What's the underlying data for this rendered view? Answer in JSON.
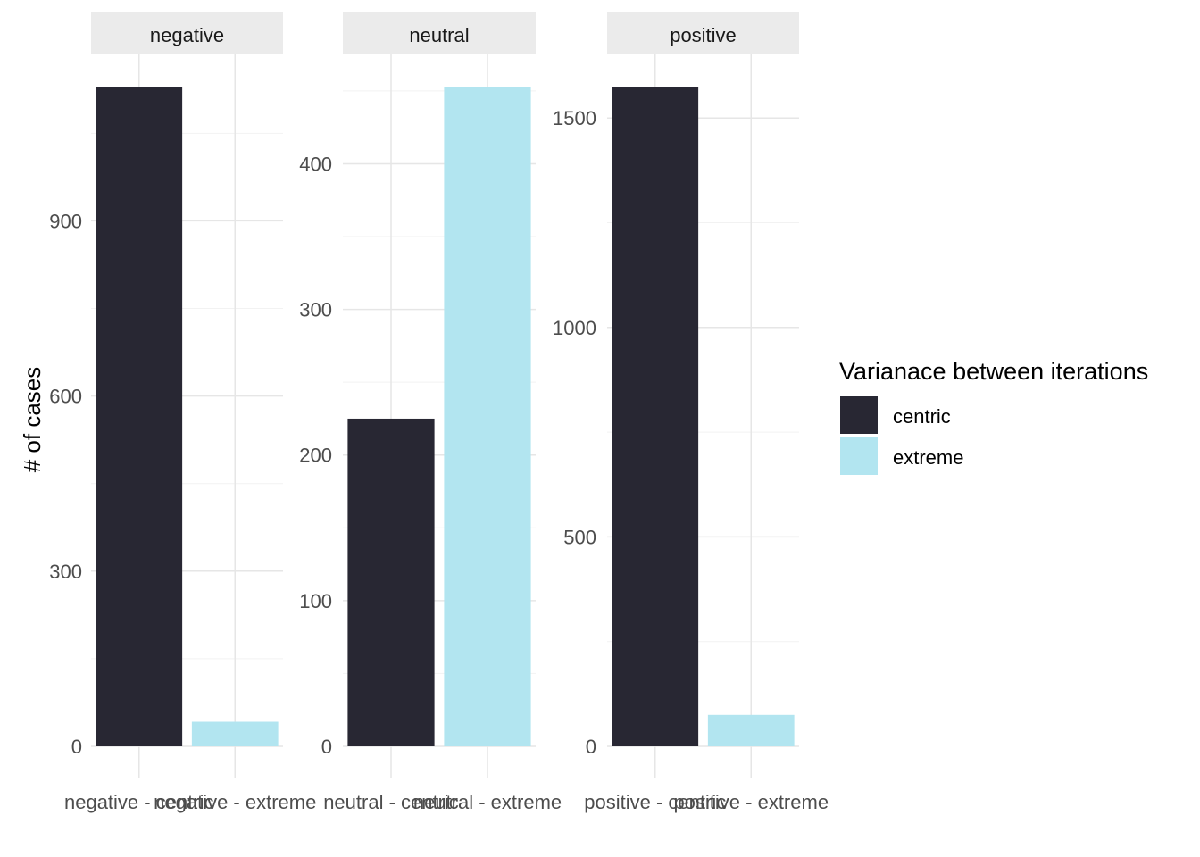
{
  "chart_data": {
    "type": "bar",
    "title": "",
    "ylabel": "# of cases",
    "xlabel": "",
    "legend": {
      "title": "Varianace between iterations",
      "placement": "right",
      "entries": [
        {
          "label": "centric",
          "color": "#282733"
        },
        {
          "label": "extreme",
          "color": "#b2e5f0"
        }
      ]
    },
    "grid": true,
    "facets": [
      {
        "label": "negative",
        "categories": [
          "negative - centric",
          "negative - extreme"
        ],
        "values": [
          1130,
          42
        ],
        "ylim": [
          0,
          1130
        ],
        "yticks": [
          0,
          300,
          600,
          900
        ],
        "colors": [
          "#282733",
          "#b2e5f0"
        ]
      },
      {
        "label": "neutral",
        "categories": [
          "neutral - centric",
          "neutral - extreme"
        ],
        "values": [
          225,
          453
        ],
        "ylim": [
          0,
          453
        ],
        "yticks": [
          0,
          100,
          200,
          300,
          400
        ],
        "colors": [
          "#282733",
          "#b2e5f0"
        ]
      },
      {
        "label": "positive",
        "categories": [
          "positive - centric",
          "positive - extreme"
        ],
        "values": [
          1575,
          75
        ],
        "ylim": [
          0,
          1575
        ],
        "yticks": [
          0,
          500,
          1000,
          1500
        ],
        "colors": [
          "#282733",
          "#b2e5f0"
        ]
      }
    ]
  }
}
